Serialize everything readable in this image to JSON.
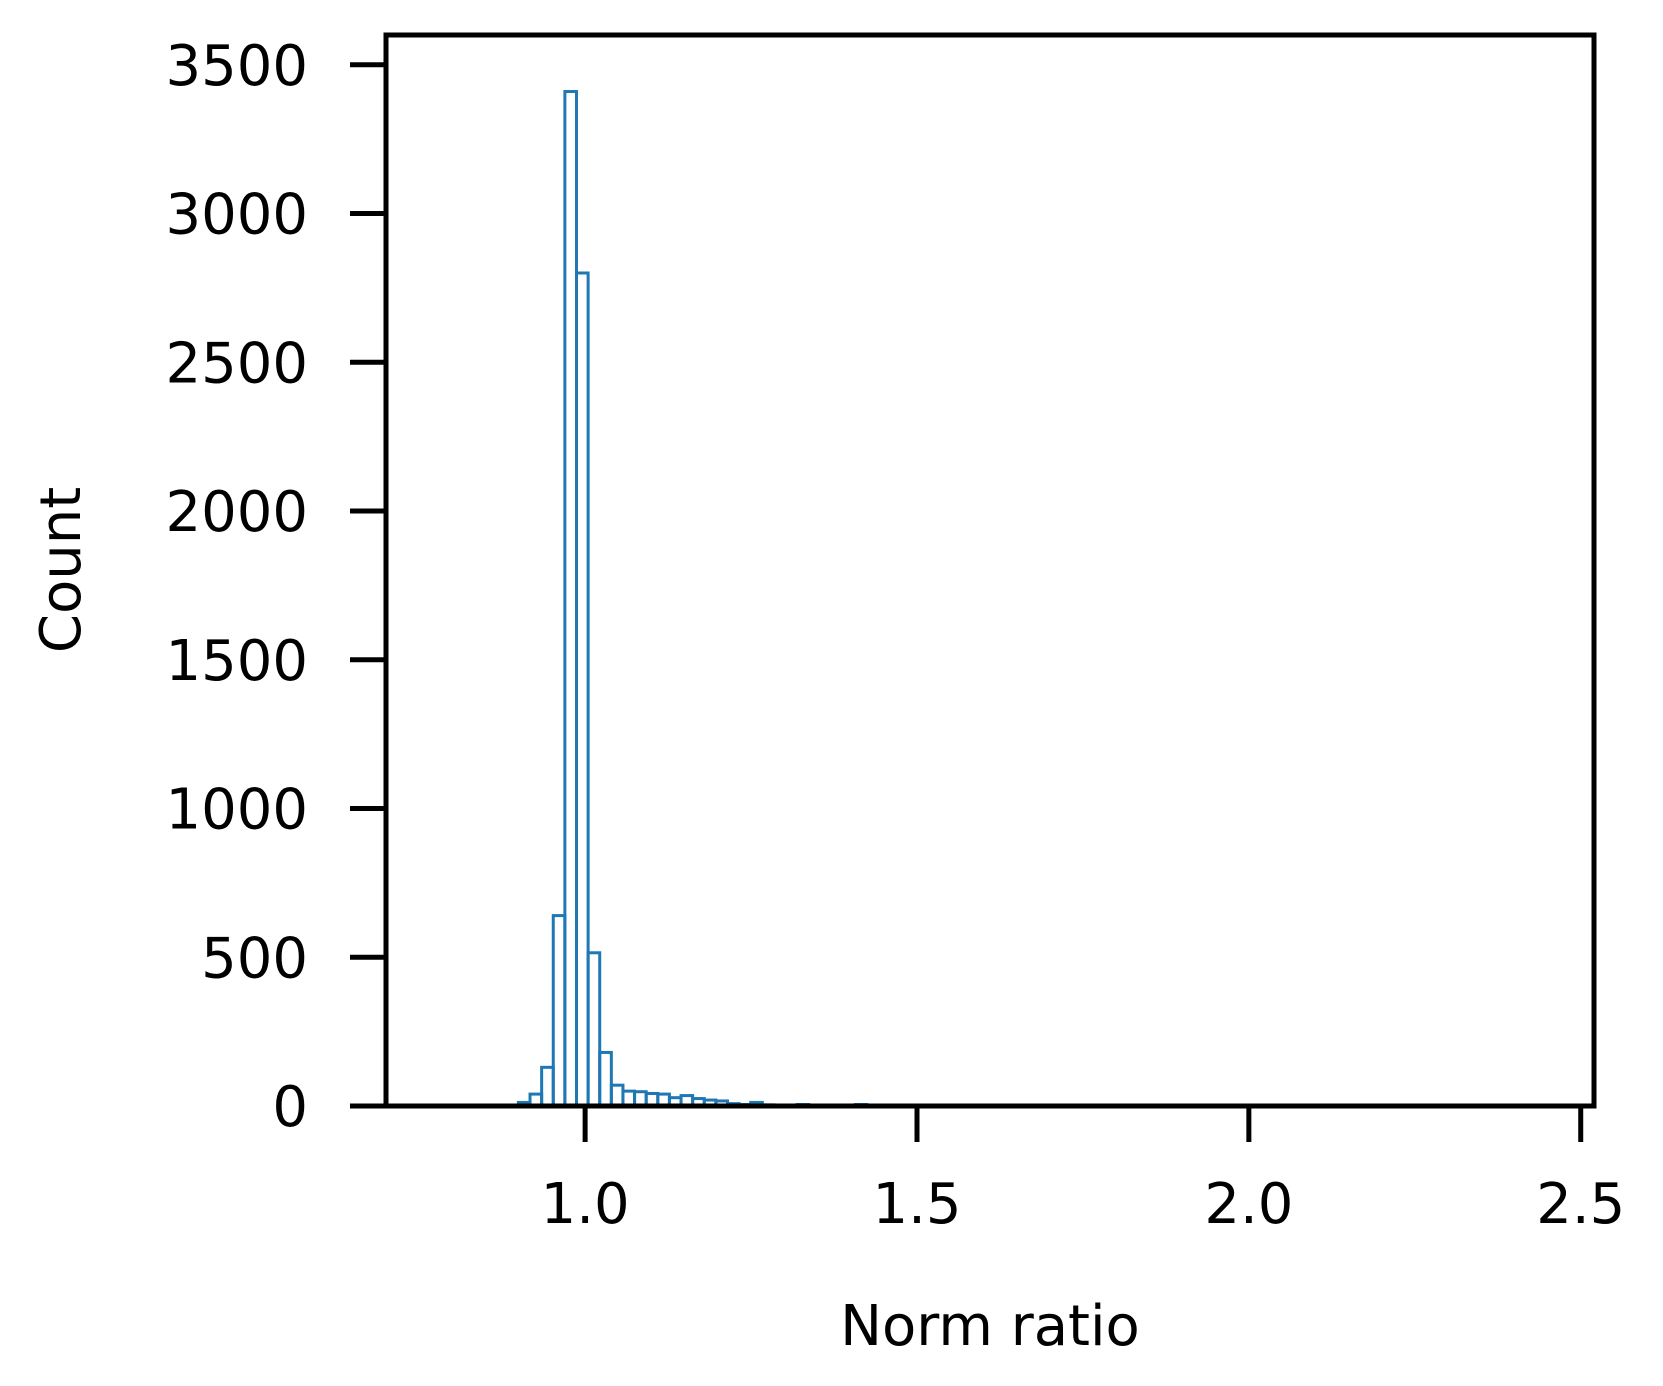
{
  "chart_data": {
    "type": "histogram",
    "title": "",
    "xlabel": "Norm ratio",
    "ylabel": "Count",
    "xlim": [
      0.7,
      2.52
    ],
    "ylim": [
      0,
      3600
    ],
    "xticks": [
      {
        "value": 1.0,
        "label": "1.0"
      },
      {
        "value": 1.5,
        "label": "1.5"
      },
      {
        "value": 2.0,
        "label": "2.0"
      },
      {
        "value": 2.5,
        "label": "2.5"
      }
    ],
    "yticks": [
      {
        "value": 0,
        "label": "0"
      },
      {
        "value": 500,
        "label": "500"
      },
      {
        "value": 1000,
        "label": "1000"
      },
      {
        "value": 1500,
        "label": "1500"
      },
      {
        "value": 2000,
        "label": "2000"
      },
      {
        "value": 2500,
        "label": "2500"
      },
      {
        "value": 3000,
        "label": "3000"
      },
      {
        "value": 3500,
        "label": "3500"
      }
    ],
    "bin_width": 0.0175,
    "bins": [
      {
        "x0": 0.8995,
        "count": 12
      },
      {
        "x0": 0.917,
        "count": 40
      },
      {
        "x0": 0.9345,
        "count": 130
      },
      {
        "x0": 0.952,
        "count": 640
      },
      {
        "x0": 0.9695,
        "count": 3410
      },
      {
        "x0": 0.987,
        "count": 2800
      },
      {
        "x0": 1.0045,
        "count": 515
      },
      {
        "x0": 1.022,
        "count": 180
      },
      {
        "x0": 1.0395,
        "count": 70
      },
      {
        "x0": 1.057,
        "count": 50
      },
      {
        "x0": 1.0745,
        "count": 48
      },
      {
        "x0": 1.092,
        "count": 42
      },
      {
        "x0": 1.1095,
        "count": 40
      },
      {
        "x0": 1.127,
        "count": 28
      },
      {
        "x0": 1.1445,
        "count": 35
      },
      {
        "x0": 1.162,
        "count": 25
      },
      {
        "x0": 1.1795,
        "count": 20
      },
      {
        "x0": 1.197,
        "count": 17
      },
      {
        "x0": 1.2145,
        "count": 8
      },
      {
        "x0": 1.232,
        "count": 5
      },
      {
        "x0": 1.2495,
        "count": 12
      },
      {
        "x0": 1.267,
        "count": 4
      },
      {
        "x0": 1.2845,
        "count": 3
      },
      {
        "x0": 1.302,
        "count": 3
      },
      {
        "x0": 1.3195,
        "count": 5
      },
      {
        "x0": 1.337,
        "count": 3
      },
      {
        "x0": 1.3545,
        "count": 2
      },
      {
        "x0": 1.372,
        "count": 2
      },
      {
        "x0": 1.3895,
        "count": 3
      },
      {
        "x0": 1.407,
        "count": 5
      },
      {
        "x0": 1.4245,
        "count": 2
      }
    ],
    "series_color": "#1f77b4",
    "grid": false,
    "legend": false
  }
}
